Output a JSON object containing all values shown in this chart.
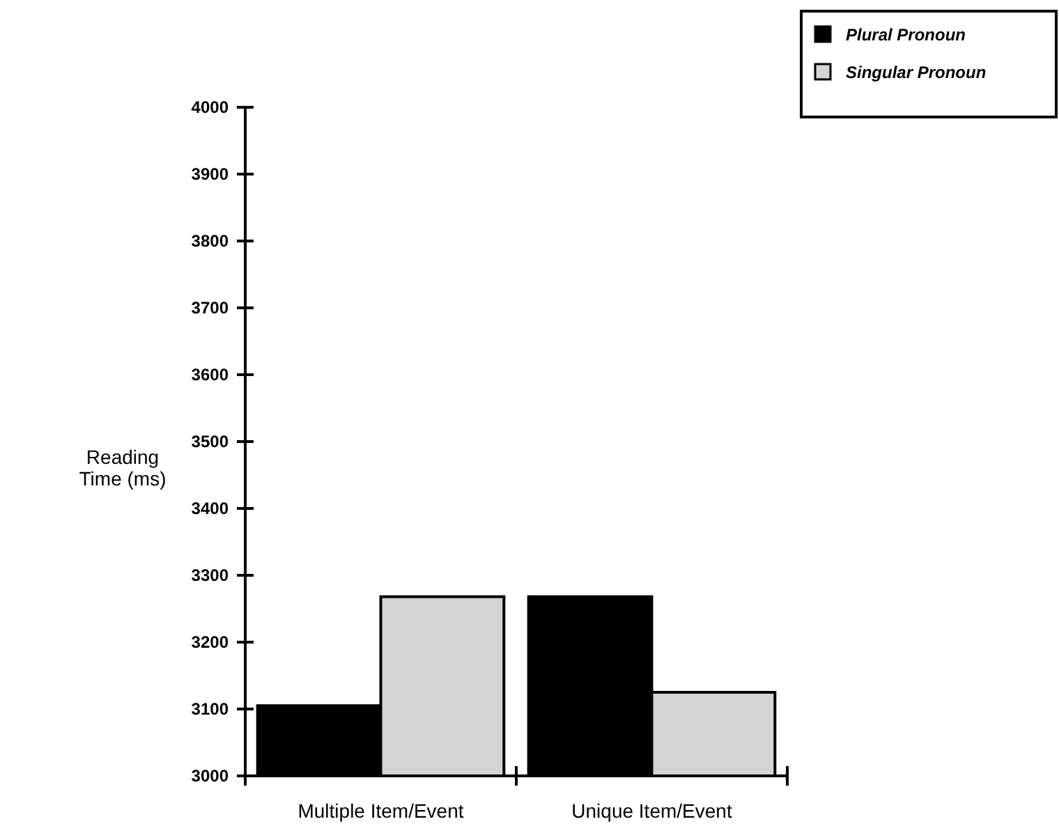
{
  "chart_data": {
    "type": "bar",
    "ylabel": "Reading Time (ms)",
    "categories": [
      "Multiple Item/Event",
      "Unique Item/Event"
    ],
    "series": [
      {
        "name": "Plural Pronoun",
        "color": "#000000",
        "values": [
          3105,
          3268
        ]
      },
      {
        "name": "Singular Pronoun",
        "color": "#d4d4d4",
        "values": [
          3268,
          3125
        ]
      }
    ],
    "ylim": [
      3000,
      4000
    ],
    "yticks": [
      3000,
      3100,
      3200,
      3300,
      3400,
      3500,
      3600,
      3700,
      3800,
      3900,
      4000
    ],
    "grid": false,
    "legend": "top right"
  }
}
